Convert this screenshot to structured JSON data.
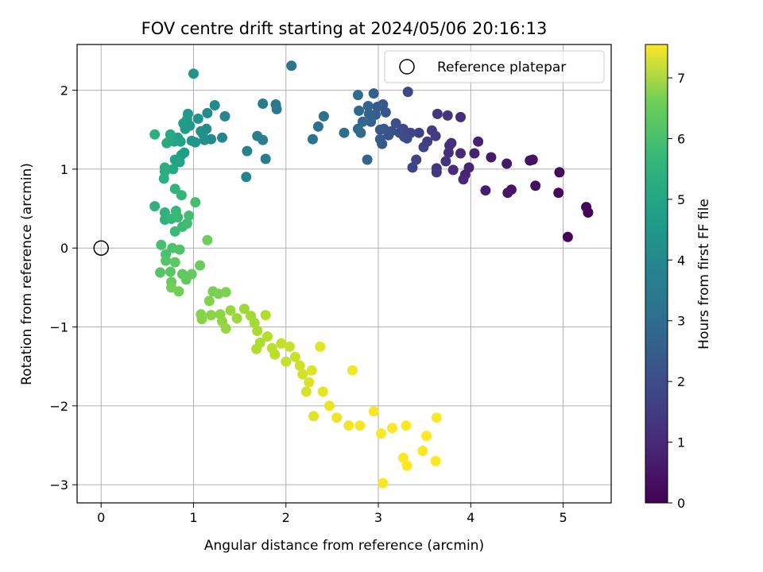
{
  "chart_data": {
    "type": "scatter",
    "title": "FOV centre drift starting at 2024/05/06 20:16:13",
    "xlabel": "Angular distance from reference (arcmin)",
    "ylabel": "Rotation from reference (arcmin)",
    "xlim": [
      -0.26,
      5.52
    ],
    "ylim": [
      -3.23,
      2.58
    ],
    "xticks": [
      0,
      1,
      2,
      3,
      4,
      5
    ],
    "yticks": [
      -3,
      -2,
      -1,
      0,
      1,
      2
    ],
    "grid": true,
    "legend": {
      "placement": "top-right",
      "entries": [
        "Reference platepar"
      ]
    },
    "reference_point": [
      0,
      0
    ],
    "colorbar": {
      "label": "Hours from first FF file",
      "min": 0,
      "max": 7.55,
      "ticks": [
        0,
        1,
        2,
        3,
        4,
        5,
        6,
        7
      ],
      "colormap": "viridis"
    },
    "points": [
      [
        5.05,
        0.14,
        0.05
      ],
      [
        5.27,
        0.45,
        0.08
      ],
      [
        5.25,
        0.52,
        0.12
      ],
      [
        4.96,
        0.96,
        0.18
      ],
      [
        4.95,
        0.7,
        0.22
      ],
      [
        4.7,
        0.79,
        0.28
      ],
      [
        4.67,
        1.12,
        0.32
      ],
      [
        4.64,
        1.11,
        0.36
      ],
      [
        4.44,
        0.74,
        0.42
      ],
      [
        4.4,
        0.7,
        0.46
      ],
      [
        4.39,
        1.07,
        0.5
      ],
      [
        4.22,
        1.15,
        0.56
      ],
      [
        4.16,
        0.73,
        0.62
      ],
      [
        4.08,
        1.35,
        0.68
      ],
      [
        4.04,
        1.2,
        0.72
      ],
      [
        3.98,
        1.02,
        0.76
      ],
      [
        3.94,
        0.93,
        0.8
      ],
      [
        3.92,
        0.87,
        0.84
      ],
      [
        3.89,
        1.2,
        0.88
      ],
      [
        3.89,
        1.66,
        0.92
      ],
      [
        3.81,
        0.99,
        0.96
      ],
      [
        3.79,
        1.33,
        1.0
      ],
      [
        3.77,
        1.3,
        1.04
      ],
      [
        3.76,
        1.21,
        1.08
      ],
      [
        3.73,
        1.1,
        1.12
      ],
      [
        3.75,
        1.68,
        1.16
      ],
      [
        3.64,
        1.7,
        1.2
      ],
      [
        3.63,
        1.01,
        1.24
      ],
      [
        3.63,
        0.96,
        1.28
      ],
      [
        3.62,
        1.42,
        1.32
      ],
      [
        3.58,
        1.49,
        1.36
      ],
      [
        3.53,
        1.35,
        1.4
      ],
      [
        3.49,
        1.28,
        1.44
      ],
      [
        3.44,
        1.46,
        1.48
      ],
      [
        3.41,
        1.12,
        1.52
      ],
      [
        3.37,
        1.02,
        1.56
      ],
      [
        3.35,
        1.46,
        1.6
      ],
      [
        3.32,
        1.98,
        1.64
      ],
      [
        3.31,
        1.39,
        1.68
      ],
      [
        3.28,
        1.41,
        1.72
      ],
      [
        3.27,
        1.51,
        1.76
      ],
      [
        3.23,
        1.46,
        1.8
      ],
      [
        3.19,
        1.58,
        1.84
      ],
      [
        3.14,
        1.48,
        1.88
      ],
      [
        3.11,
        1.43,
        1.92
      ],
      [
        3.08,
        1.72,
        1.96
      ],
      [
        3.06,
        1.51,
        2.0
      ],
      [
        3.05,
        1.82,
        2.04
      ],
      [
        3.04,
        1.32,
        2.08
      ],
      [
        3.02,
        1.5,
        2.12
      ],
      [
        3.02,
        1.38,
        2.16
      ],
      [
        2.99,
        1.79,
        2.2
      ],
      [
        2.97,
        1.69,
        2.24
      ],
      [
        2.95,
        1.96,
        2.28
      ],
      [
        2.92,
        1.6,
        2.32
      ],
      [
        2.9,
        1.7,
        2.36
      ],
      [
        2.89,
        1.8,
        2.4
      ],
      [
        2.88,
        1.12,
        2.44
      ],
      [
        2.83,
        1.6,
        2.48
      ],
      [
        2.81,
        1.46,
        2.52
      ],
      [
        2.79,
        1.74,
        2.56
      ],
      [
        2.78,
        1.51,
        2.6
      ],
      [
        2.78,
        1.94,
        2.64
      ],
      [
        2.63,
        1.46,
        2.7
      ],
      [
        2.41,
        1.67,
        2.76
      ],
      [
        2.35,
        1.54,
        2.82
      ],
      [
        2.29,
        1.38,
        2.88
      ],
      [
        2.06,
        2.31,
        2.94
      ],
      [
        1.89,
        1.82,
        3.0
      ],
      [
        1.9,
        1.76,
        3.06
      ],
      [
        1.75,
        1.83,
        3.12
      ],
      [
        1.78,
        1.13,
        3.18
      ],
      [
        1.75,
        1.37,
        3.24
      ],
      [
        1.69,
        1.42,
        3.3
      ],
      [
        1.57,
        0.9,
        3.36
      ],
      [
        1.58,
        1.23,
        3.42
      ],
      [
        1.34,
        1.67,
        3.48
      ],
      [
        1.31,
        1.4,
        3.52
      ],
      [
        1.23,
        1.81,
        3.56
      ],
      [
        1.19,
        1.38,
        3.6
      ],
      [
        1.15,
        1.71,
        3.64
      ],
      [
        1.14,
        1.51,
        3.68
      ],
      [
        1.12,
        1.37,
        3.72
      ],
      [
        1.1,
        1.45,
        3.76
      ],
      [
        1.08,
        1.48,
        3.8
      ],
      [
        1.05,
        1.64,
        3.84
      ],
      [
        1.02,
        1.34,
        3.88
      ],
      [
        1.0,
        2.21,
        3.92
      ],
      [
        0.98,
        1.36,
        3.96
      ],
      [
        0.96,
        1.55,
        4.0
      ],
      [
        0.94,
        1.7,
        4.04
      ],
      [
        0.93,
        1.63,
        4.08
      ],
      [
        0.91,
        1.51,
        4.12
      ],
      [
        0.9,
        1.21,
        4.16
      ],
      [
        0.89,
        1.58,
        4.2
      ],
      [
        0.87,
        1.18,
        4.24
      ],
      [
        0.86,
        1.35,
        4.28
      ],
      [
        0.85,
        1.09,
        4.32
      ],
      [
        0.83,
        1.4,
        4.36
      ],
      [
        0.8,
        1.12,
        4.4
      ],
      [
        0.79,
        1.35,
        4.44
      ],
      [
        0.78,
        1.0,
        4.48
      ],
      [
        0.75,
        1.44,
        4.52
      ],
      [
        0.74,
        1.36,
        4.56
      ],
      [
        0.71,
        1.33,
        4.6
      ],
      [
        0.69,
        0.97,
        4.64
      ],
      [
        0.69,
        1.02,
        4.68
      ],
      [
        0.68,
        0.88,
        4.72
      ],
      [
        0.58,
        1.44,
        4.76
      ],
      [
        0.58,
        0.53,
        4.8
      ],
      [
        0.69,
        0.45,
        4.84
      ],
      [
        0.69,
        0.36,
        4.88
      ],
      [
        0.8,
        0.75,
        4.92
      ],
      [
        0.87,
        0.67,
        4.96
      ],
      [
        0.76,
        0.37,
        5.0
      ],
      [
        0.81,
        0.47,
        5.04
      ],
      [
        0.83,
        0.39,
        5.08
      ],
      [
        0.8,
        0.21,
        5.12
      ],
      [
        0.88,
        0.27,
        5.16
      ],
      [
        0.93,
        0.31,
        5.2
      ],
      [
        0.95,
        0.41,
        5.24
      ],
      [
        1.02,
        0.58,
        5.28
      ],
      [
        0.65,
        0.04,
        5.32
      ],
      [
        0.7,
        -0.08,
        5.36
      ],
      [
        0.77,
        0.0,
        5.4
      ],
      [
        0.85,
        -0.02,
        5.44
      ],
      [
        0.7,
        -0.16,
        5.48
      ],
      [
        0.64,
        -0.31,
        5.52
      ],
      [
        0.75,
        -0.3,
        5.56
      ],
      [
        0.8,
        -0.18,
        5.6
      ],
      [
        0.88,
        -0.33,
        5.64
      ],
      [
        0.92,
        -0.4,
        5.68
      ],
      [
        0.98,
        -0.33,
        5.72
      ],
      [
        0.76,
        -0.43,
        5.76
      ],
      [
        1.07,
        -0.22,
        5.8
      ],
      [
        1.15,
        0.1,
        5.84
      ],
      [
        0.76,
        -0.5,
        5.88
      ],
      [
        0.84,
        -0.55,
        5.92
      ],
      [
        1.21,
        -0.55,
        5.96
      ],
      [
        1.27,
        -0.58,
        6.0
      ],
      [
        1.35,
        -0.56,
        6.04
      ],
      [
        1.17,
        -0.67,
        6.08
      ],
      [
        1.08,
        -0.84,
        6.12
      ],
      [
        1.09,
        -0.9,
        6.16
      ],
      [
        1.19,
        -0.85,
        6.2
      ],
      [
        1.29,
        -0.84,
        6.24
      ],
      [
        1.31,
        -0.93,
        6.28
      ],
      [
        1.35,
        -1.02,
        6.32
      ],
      [
        1.4,
        -0.79,
        6.36
      ],
      [
        1.47,
        -0.89,
        6.4
      ],
      [
        1.55,
        -0.77,
        6.44
      ],
      [
        1.62,
        -0.86,
        6.48
      ],
      [
        1.66,
        -0.95,
        6.52
      ],
      [
        1.69,
        -1.05,
        6.56
      ],
      [
        1.72,
        -1.2,
        6.6
      ],
      [
        1.68,
        -1.28,
        6.64
      ],
      [
        1.78,
        -0.85,
        6.68
      ],
      [
        1.8,
        -1.12,
        6.72
      ],
      [
        1.85,
        -1.27,
        6.76
      ],
      [
        1.88,
        -1.35,
        6.8
      ],
      [
        1.95,
        -1.21,
        6.84
      ],
      [
        2.0,
        -1.44,
        6.88
      ],
      [
        2.04,
        -1.25,
        6.92
      ],
      [
        2.1,
        -1.38,
        6.96
      ],
      [
        2.15,
        -1.49,
        7.0
      ],
      [
        2.18,
        -1.6,
        7.04
      ],
      [
        2.22,
        -1.82,
        7.08
      ],
      [
        2.25,
        -1.7,
        7.12
      ],
      [
        2.28,
        -1.55,
        7.16
      ],
      [
        2.3,
        -2.13,
        7.2
      ],
      [
        2.37,
        -1.25,
        7.24
      ],
      [
        2.4,
        -1.82,
        7.28
      ],
      [
        2.47,
        -2.0,
        7.32
      ],
      [
        2.55,
        -2.15,
        7.36
      ],
      [
        2.68,
        -2.25,
        7.4
      ],
      [
        2.72,
        -1.55,
        7.44
      ],
      [
        2.8,
        -2.25,
        7.48
      ],
      [
        2.95,
        -2.07,
        7.5
      ],
      [
        3.03,
        -2.35,
        7.51
      ],
      [
        3.05,
        -2.98,
        7.52
      ],
      [
        3.15,
        -2.28,
        7.53
      ],
      [
        3.27,
        -2.66,
        7.54
      ],
      [
        3.3,
        -2.25,
        7.55
      ],
      [
        3.31,
        -2.76,
        7.55
      ],
      [
        3.48,
        -2.57,
        7.55
      ],
      [
        3.52,
        -2.38,
        7.55
      ],
      [
        3.63,
        -2.15,
        7.55
      ],
      [
        3.62,
        -2.7,
        7.55
      ]
    ]
  }
}
